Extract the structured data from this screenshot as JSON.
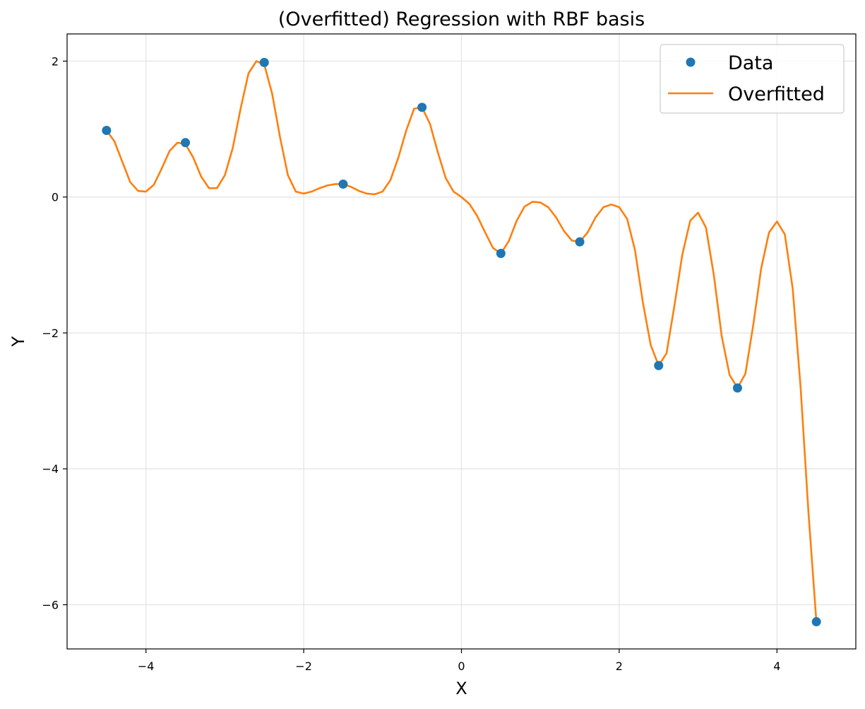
{
  "chart_data": {
    "type": "line",
    "title": "(Overfitted) Regression with RBF basis",
    "xlabel": "X",
    "ylabel": "Y",
    "xlim": [
      -5.0,
      5.0
    ],
    "ylim": [
      -6.65,
      2.4
    ],
    "xticks": [
      -4,
      -2,
      0,
      2,
      4
    ],
    "yticks": [
      -6,
      -4,
      -2,
      0,
      2
    ],
    "xtick_labels": [
      "−4",
      "−2",
      "0",
      "2",
      "4"
    ],
    "ytick_labels": [
      "−6",
      "−4",
      "−2",
      "0",
      "2"
    ],
    "grid": true,
    "legend_position": "top-right",
    "colors": {
      "data": "#1f77b4",
      "fit": "#ff7f0e"
    },
    "series": [
      {
        "name": "Data",
        "kind": "scatter",
        "x": [
          -4.5,
          -3.5,
          -2.5,
          -1.5,
          -0.5,
          0.5,
          1.5,
          2.5,
          3.5,
          4.5
        ],
        "y": [
          0.98,
          0.8,
          1.98,
          0.19,
          1.32,
          -0.83,
          -0.66,
          -2.48,
          -2.81,
          -6.25
        ]
      },
      {
        "name": "Overfitted",
        "kind": "line",
        "x": [
          -4.5,
          -4.4,
          -4.3,
          -4.2,
          -4.1,
          -4.0,
          -3.9,
          -3.8,
          -3.7,
          -3.6,
          -3.5,
          -3.4,
          -3.3,
          -3.2,
          -3.1,
          -3.0,
          -2.9,
          -2.8,
          -2.7,
          -2.6,
          -2.5,
          -2.4,
          -2.3,
          -2.2,
          -2.1,
          -2.0,
          -1.9,
          -1.8,
          -1.7,
          -1.6,
          -1.5,
          -1.4,
          -1.3,
          -1.2,
          -1.1,
          -1.0,
          -0.9,
          -0.8,
          -0.7,
          -0.6,
          -0.5,
          -0.4,
          -0.3,
          -0.2,
          -0.1,
          0.0,
          0.1,
          0.2,
          0.3,
          0.4,
          0.5,
          0.6,
          0.7,
          0.8,
          0.9,
          1.0,
          1.1,
          1.2,
          1.3,
          1.4,
          1.5,
          1.6,
          1.7,
          1.8,
          1.9,
          2.0,
          2.1,
          2.2,
          2.3,
          2.4,
          2.5,
          2.6,
          2.7,
          2.8,
          2.9,
          3.0,
          3.1,
          3.2,
          3.3,
          3.4,
          3.5,
          3.6,
          3.7,
          3.8,
          3.9,
          4.0,
          4.1,
          4.2,
          4.3,
          4.4,
          4.5
        ],
        "y": [
          0.98,
          0.82,
          0.52,
          0.22,
          0.09,
          0.08,
          0.18,
          0.42,
          0.68,
          0.8,
          0.78,
          0.58,
          0.3,
          0.13,
          0.13,
          0.32,
          0.72,
          1.3,
          1.82,
          2.0,
          1.95,
          1.52,
          0.88,
          0.32,
          0.08,
          0.05,
          0.08,
          0.13,
          0.17,
          0.19,
          0.19,
          0.15,
          0.09,
          0.05,
          0.04,
          0.08,
          0.25,
          0.58,
          0.98,
          1.3,
          1.32,
          1.08,
          0.66,
          0.28,
          0.08,
          0.0,
          -0.1,
          -0.28,
          -0.52,
          -0.75,
          -0.83,
          -0.65,
          -0.35,
          -0.14,
          -0.07,
          -0.08,
          -0.15,
          -0.3,
          -0.5,
          -0.64,
          -0.66,
          -0.52,
          -0.3,
          -0.15,
          -0.11,
          -0.15,
          -0.32,
          -0.78,
          -1.55,
          -2.18,
          -2.48,
          -2.3,
          -1.6,
          -0.85,
          -0.35,
          -0.23,
          -0.45,
          -1.15,
          -2.05,
          -2.62,
          -2.81,
          -2.6,
          -1.88,
          -1.05,
          -0.52,
          -0.36,
          -0.55,
          -1.35,
          -2.8,
          -4.65,
          -6.25
        ]
      }
    ]
  }
}
